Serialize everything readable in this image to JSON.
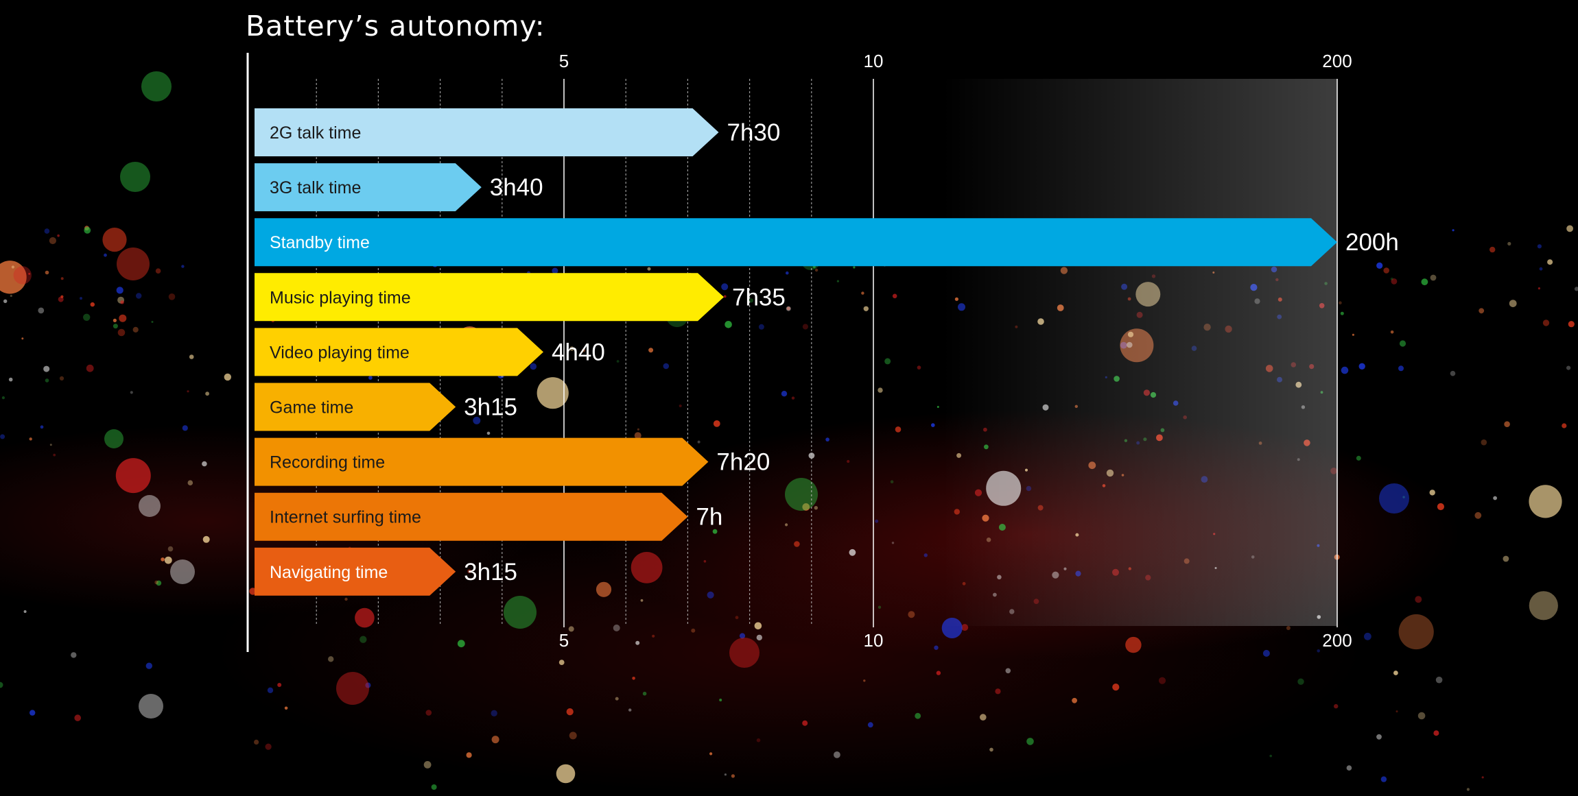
{
  "title": "Battery’s autonomy:",
  "chart_data": {
    "type": "bar",
    "orientation": "horizontal",
    "title": "Battery’s autonomy:",
    "xlabel": "",
    "ylabel": "",
    "x_scale": "broken axis: linear 0–10 hours, then compressed segment 10–200 hours",
    "xlim": [
      0,
      200
    ],
    "x_ticks": [
      "5",
      "10",
      "200"
    ],
    "grid": true,
    "categories": [
      "2G talk time",
      "3G talk time",
      "Standby time",
      "Music playing time",
      "Video playing time",
      "Game time",
      "Recording time",
      "Internet surfing time",
      "Navigating time"
    ],
    "values": [
      7.5,
      3.667,
      200,
      7.583,
      4.667,
      3.25,
      7.333,
      7,
      3.25
    ],
    "value_labels": [
      "7h30",
      "3h40",
      "200h",
      "7h35",
      "4h40",
      "3h15",
      "7h20",
      "7h",
      "3h15"
    ],
    "colors": [
      "#b3e0f5",
      "#6cccf0",
      "#00a8e2",
      "#ffec00",
      "#ffd000",
      "#f8b000",
      "#f29100",
      "#ec7606",
      "#e85e12"
    ],
    "label_colors": [
      "#1a1a1a",
      "#1a1a1a",
      "#ffffff",
      "#1a1a1a",
      "#1a1a1a",
      "#1a1a1a",
      "#1a1a1a",
      "#1a1a1a",
      "#ffffff"
    ]
  }
}
